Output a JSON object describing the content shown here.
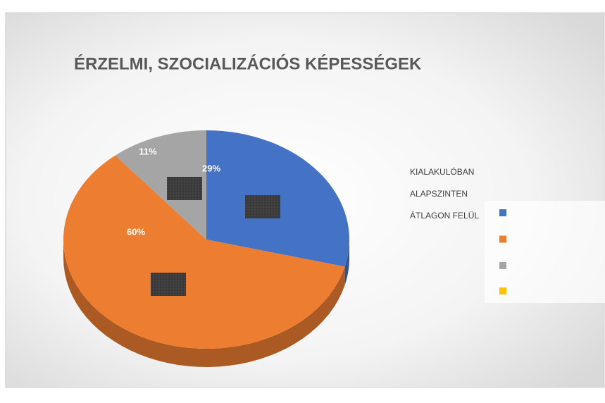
{
  "chart_data": {
    "type": "pie",
    "title": "ÉRZELMI, SZOCIALIZÁCIÓS KÉPESSÉGEK",
    "categories": [
      "KIALAKULÓBAN",
      "ALAPSZINTEN",
      "ÁTLAGON FELÜL"
    ],
    "values": [
      29,
      60,
      11
    ],
    "value_labels": [
      "29%",
      "60%",
      "11%"
    ],
    "colors": [
      "#4472c4",
      "#ed7d31",
      "#a5a5a5"
    ]
  }
}
